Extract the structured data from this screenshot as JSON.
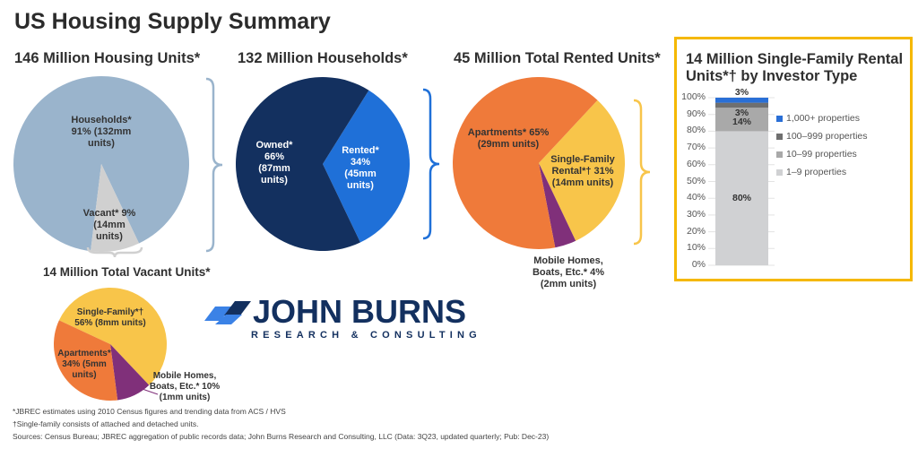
{
  "title": "US Housing Supply Summary",
  "colors": {
    "households": "#9ab4cc",
    "vacant": "#d0d0d0",
    "owned": "#13305f",
    "rented": "#1f70d8",
    "apartments": "#ef7a3a",
    "single_family": "#f8c54a",
    "mobile": "#80307a",
    "box_border": "#f5b800",
    "b1_9": "#d0d1d3",
    "b10_99": "#a9a9a9",
    "b100_999": "#6f6f6f",
    "b1000": "#2a6fd6"
  },
  "chart_data": [
    {
      "type": "pie",
      "title": "146 Million Housing Units*",
      "slices": [
        {
          "name": "Households*",
          "value": 91,
          "label": "Households*\n91% (132mm\nunits)",
          "color": "#9ab4cc"
        },
        {
          "name": "Vacant*",
          "value": 9,
          "label": "Vacant* 9%\n(14mm\nunits)",
          "color": "#d0d0d0"
        }
      ]
    },
    {
      "type": "pie",
      "title": "132 Million Households*",
      "slices": [
        {
          "name": "Rented*",
          "value": 34,
          "label": "Rented*\n34%\n(45mm\nunits)",
          "color": "#1f70d8"
        },
        {
          "name": "Owned*",
          "value": 66,
          "label": "Owned*\n66%\n(87mm\nunits)",
          "color": "#13305f"
        }
      ]
    },
    {
      "type": "pie",
      "title": "45 Million Total Rented Units*",
      "slices": [
        {
          "name": "Single-Family Rental*†",
          "value": 31,
          "label": "Single-Family\nRental*† 31%\n(14mm units)",
          "color": "#f8c54a"
        },
        {
          "name": "Mobile Homes, Boats, Etc.*",
          "value": 4,
          "label": "Mobile Homes,\nBoats, Etc.* 4%\n(2mm units)",
          "color": "#80307a"
        },
        {
          "name": "Apartments*",
          "value": 65,
          "label": "Apartments* 65%\n(29mm units)",
          "color": "#ef7a3a"
        }
      ]
    },
    {
      "type": "pie",
      "title": "14 Million Total Vacant Units*",
      "slices": [
        {
          "name": "Single-Family*†",
          "value": 56,
          "label": "Single-Family*†\n56% (8mm units)",
          "color": "#f8c54a"
        },
        {
          "name": "Mobile Homes, Boats, Etc.*",
          "value": 10,
          "label": "Mobile Homes,\nBoats, Etc.* 10%\n(1mm units)",
          "color": "#80307a"
        },
        {
          "name": "Apartments*",
          "value": 34,
          "label": "Apartments*\n34% (5mm\nunits)",
          "color": "#ef7a3a"
        }
      ]
    },
    {
      "type": "bar",
      "stacked": true,
      "title": "14 Million Single-Family Rental Units*† by Investor Type",
      "ylim": [
        0,
        100
      ],
      "yticks": [
        "0%",
        "10%",
        "20%",
        "30%",
        "40%",
        "50%",
        "60%",
        "70%",
        "80%",
        "90%",
        "100%"
      ],
      "series": [
        {
          "name": "1–9 properties",
          "value": 80,
          "label": "80%",
          "color": "#d0d1d3"
        },
        {
          "name": "10–99 properties",
          "value": 14,
          "label": "14%",
          "color": "#a9a9a9"
        },
        {
          "name": "100–999 properties",
          "value": 3,
          "label": "3%",
          "color": "#6f6f6f"
        },
        {
          "name": "1,000+ properties",
          "value": 3,
          "label": "3%",
          "color": "#2a6fd6"
        }
      ],
      "legend": [
        "1,000+ properties",
        "100–999 properties",
        "10–99 properties",
        "1–9 properties"
      ],
      "legend_position": "right"
    }
  ],
  "logo": {
    "main": "JOHN BURNS",
    "sub": "RESEARCH & CONSULTING"
  },
  "footnotes": [
    "*JBREC estimates using 2010 Census figures and trending data from ACS / HVS",
    "†Single-family consists of attached and detached units.",
    "Sources: Census Bureau; JBREC aggregation of public records data; John Burns Research and Consulting, LLC (Data: 3Q23, updated quarterly; Pub: Dec-23)"
  ]
}
